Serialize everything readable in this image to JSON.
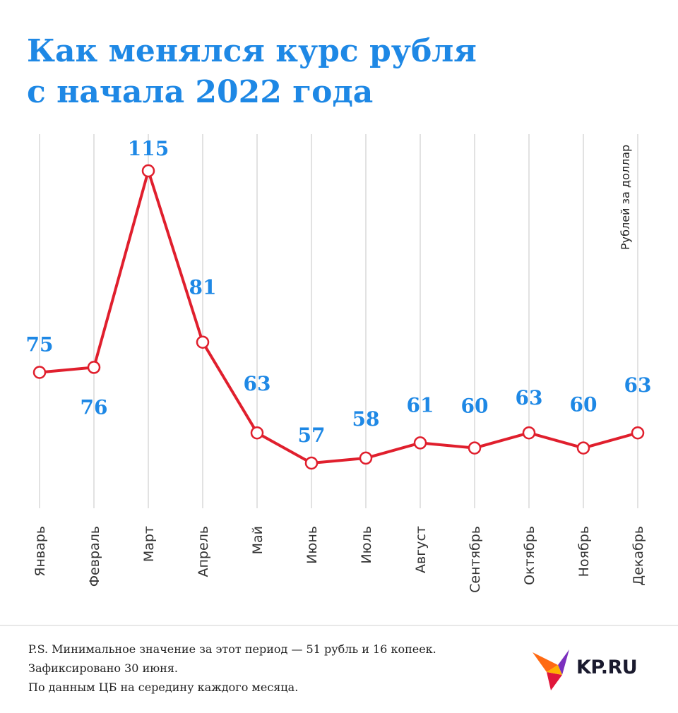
{
  "title_line1": "Как менялся курс рубля",
  "title_line2": "с начала 2022 года",
  "chart_data": {
    "type": "line",
    "title": "Как менялся курс рубля с начала 2022 года",
    "categories": [
      "Январь",
      "Февраль",
      "Март",
      "Апрель",
      "Май",
      "Июнь",
      "Июль",
      "Август",
      "Сентябрь",
      "Октябрь",
      "Ноябрь",
      "Декабрь"
    ],
    "values": [
      75,
      76,
      115,
      81,
      63,
      57,
      58,
      61,
      60,
      63,
      60,
      63
    ],
    "data_labels": [
      "75",
      "76",
      "115",
      "81",
      "63",
      "57",
      "58",
      "61",
      "60",
      "63",
      "60",
      "63"
    ],
    "ylabel": "Рублей за доллар",
    "grid": "vertical",
    "line_color": "#e01f2d",
    "label_color": "#1e88e5"
  },
  "footnotes": [
    "P.S. Минимальное значение за этот период — 51 рубль и 16 копеек.",
    "Зафиксировано 30 июня.",
    "По данным ЦБ на середину каждого месяца."
  ],
  "logo": {
    "text": "KP.RU",
    "icon": "kp-bird-icon"
  }
}
